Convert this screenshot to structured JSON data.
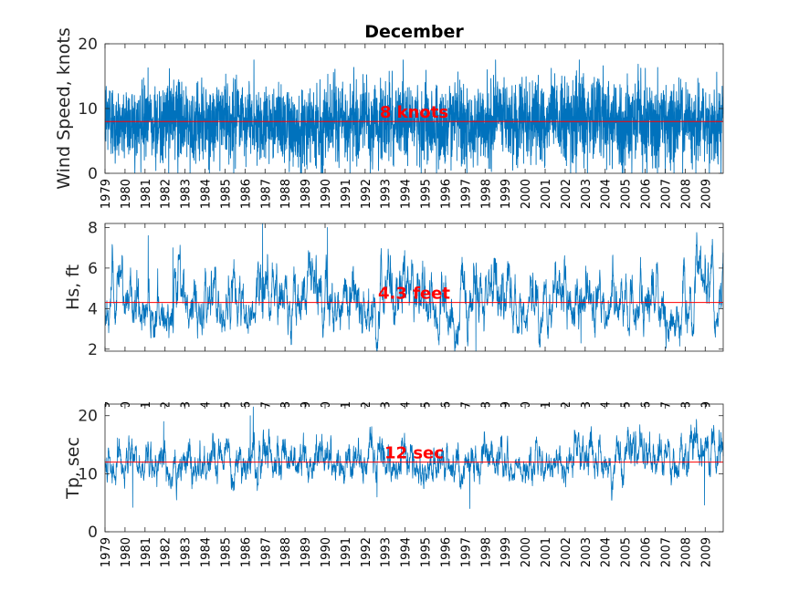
{
  "figure_title": "December",
  "colors": {
    "series": "#0072BD",
    "mean_line": "#FF0000",
    "mean_label": "#FF0000",
    "axis": "#262626",
    "background": "#FFFFFF"
  },
  "chart_data": [
    {
      "type": "line",
      "name": "wind-speed",
      "title": "December",
      "ylabel": "Wind Speed, knots",
      "xlabel": "",
      "xlim": [
        1979,
        2009.9
      ],
      "ylim": [
        0,
        20
      ],
      "yticks": [
        0,
        10,
        20
      ],
      "xtick_labels": [
        "1979",
        "1980",
        "1981",
        "1982",
        "1983",
        "1984",
        "1985",
        "1986",
        "1987",
        "1988",
        "1989",
        "1990",
        "1991",
        "1992",
        "1993",
        "1994",
        "1995",
        "1996",
        "1997",
        "1998",
        "1999",
        "2000",
        "2001",
        "2002",
        "2003",
        "2004",
        "2005",
        "2006",
        "2007",
        "2008",
        "2009"
      ],
      "mean": 8,
      "mean_label": "8 knots",
      "series_summary": {
        "typical_min": 2,
        "typical_max": 15,
        "peak": 17.5,
        "samples_per_year": 120
      }
    },
    {
      "type": "line",
      "name": "significant-wave-height",
      "title": "",
      "ylabel": "Hs, ft",
      "xlabel": "",
      "xlim": [
        1979,
        2009.9
      ],
      "ylim": [
        1.9,
        8.2
      ],
      "yticks": [
        2,
        4,
        6,
        8
      ],
      "xtick_labels": [],
      "mean": 4.3,
      "mean_label": "4.3 feet",
      "series_summary": {
        "typical_min": 2.5,
        "typical_max": 7.5,
        "peak": 8.2,
        "trough": 1.9,
        "samples_per_year": 120
      }
    },
    {
      "type": "line",
      "name": "peak-period",
      "title": "",
      "ylabel": "Tp, sec",
      "xlabel": "",
      "xlim": [
        1979,
        2009.9
      ],
      "ylim": [
        0,
        22
      ],
      "yticks": [
        0,
        10,
        20
      ],
      "xtick_labels": [
        "1979",
        "1980",
        "1981",
        "1982",
        "1983",
        "1984",
        "1985",
        "1986",
        "1987",
        "1988",
        "1989",
        "1990",
        "1991",
        "1992",
        "1993",
        "1994",
        "1995",
        "1996",
        "1997",
        "1998",
        "1999",
        "2000",
        "2001",
        "2002",
        "2003",
        "2004",
        "2005",
        "2006",
        "2007",
        "2008",
        "2009"
      ],
      "overlapping_top_tick_labels": true,
      "mean": 12,
      "mean_label": "12 sec",
      "series_summary": {
        "typical_min": 9,
        "typical_max": 18,
        "peak": 21,
        "trough": 4,
        "samples_per_year": 120
      }
    }
  ]
}
